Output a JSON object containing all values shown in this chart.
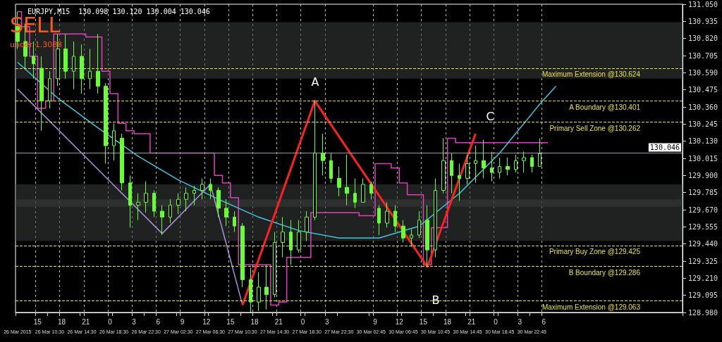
{
  "chart_data": {
    "type": "candlestick",
    "title": "EURJPY,M15  130.098 130.120 130.004 130.046",
    "categories": [
      "26 Mar 2015",
      null,
      null,
      null,
      null,
      "15",
      null,
      null,
      "26 Mar 10:30",
      null,
      null,
      "18",
      null,
      null,
      null,
      null,
      "26 Mar 14:30",
      "21",
      null,
      null,
      null,
      null,
      null,
      "0",
      "26 Mar 18:30",
      null,
      null,
      null,
      null,
      "3",
      null,
      null,
      "26 Mar 22:30",
      null,
      null,
      "6",
      null,
      null,
      null,
      null,
      "27 Mar 02:30",
      "9",
      null,
      null,
      null,
      null,
      null,
      "12",
      "27 Mar 06:30",
      null,
      null,
      null,
      null,
      "15",
      null,
      null,
      "27 Mar 10:30",
      null,
      null,
      "18",
      null,
      null,
      null,
      null,
      "27 Mar 14:30",
      "21",
      null,
      null,
      null,
      null,
      null,
      "0",
      "27 Mar 18:30",
      null,
      null,
      null,
      null,
      "3",
      null,
      null,
      "27 Mar 22:30",
      null,
      null,
      null,
      null,
      null,
      null,
      null,
      "30 Mar 02:45",
      "9",
      null,
      null,
      null,
      null,
      null,
      "12",
      "30 Mar 06:45",
      null,
      null,
      null,
      null,
      "15",
      null,
      null,
      "30 Mar 10:45",
      null,
      null,
      "18",
      null,
      null,
      null,
      null,
      "30 Mar 14:45",
      "21",
      null,
      null,
      null,
      null,
      null,
      "0",
      "30 Mar 18:45",
      null,
      null,
      null,
      null,
      "3",
      null,
      null,
      "30 Mar 22:45",
      null,
      null,
      "6",
      null,
      null,
      null,
      null,
      null,
      null,
      null,
      null,
      null,
      null,
      null,
      null,
      null,
      null,
      null,
      null,
      null,
      null,
      null,
      null,
      null,
      null,
      null,
      null,
      null,
      null,
      null,
      null,
      null,
      null,
      null,
      null,
      null,
      null
    ],
    "ylim": [
      128.98,
      131.05
    ],
    "yticks": [
      {
        "value": 128.98,
        "label": "128.980"
      },
      {
        "value": 129.095,
        "label": "129.095"
      },
      {
        "value": 129.21,
        "label": "129.210"
      },
      {
        "value": 129.325,
        "label": "129.325"
      },
      {
        "value": 129.44,
        "label": "129.440"
      },
      {
        "value": 129.555,
        "label": "129.555"
      },
      {
        "value": 129.67,
        "label": "129.670"
      },
      {
        "value": 129.785,
        "label": "129.785"
      },
      {
        "value": 129.9,
        "label": "129.900"
      },
      {
        "value": 130.015,
        "label": "130.015"
      },
      {
        "value": 130.13,
        "label": "130.130"
      },
      {
        "value": 130.245,
        "label": "130.245"
      },
      {
        "value": 130.36,
        "label": "130.360"
      },
      {
        "value": 130.475,
        "label": "130.475"
      },
      {
        "value": 130.59,
        "label": "130.590"
      },
      {
        "value": 130.705,
        "label": "130.705"
      },
      {
        "value": 130.82,
        "label": "130.820"
      },
      {
        "value": 130.935,
        "label": "130.935"
      },
      {
        "value": 131.05,
        "label": "131.050"
      }
    ],
    "grid": "x",
    "series": [
      {
        "color": "#66ff33",
        "ohlc": [
          [
            130.9,
            131.0,
            130.75,
            130.8
          ],
          null,
          [
            130.8,
            130.92,
            130.62,
            130.7
          ],
          null,
          [
            130.7,
            130.8,
            130.55,
            130.65
          ],
          null,
          [
            130.62,
            130.7,
            130.2,
            130.4
          ],
          null,
          [
            130.4,
            130.6,
            130.35,
            130.55
          ],
          null,
          [
            130.55,
            130.85,
            130.5,
            130.75
          ],
          null,
          [
            130.75,
            130.85,
            130.55,
            130.6
          ],
          null,
          [
            130.6,
            130.8,
            130.48,
            130.7
          ],
          null,
          [
            130.7,
            130.78,
            130.45,
            130.55
          ],
          null,
          [
            130.55,
            130.75,
            130.48,
            130.6
          ],
          null,
          [
            130.6,
            130.85,
            130.45,
            130.5
          ],
          null,
          [
            130.5,
            130.52,
            129.98,
            130.1
          ],
          null,
          [
            130.1,
            130.25,
            130.0,
            130.2
          ],
          null,
          [
            130.15,
            130.18,
            129.8,
            129.85
          ],
          null,
          [
            129.85,
            129.9,
            129.55,
            129.7
          ],
          null,
          [
            129.7,
            129.78,
            129.6,
            129.72
          ],
          null,
          [
            129.72,
            129.86,
            129.65,
            129.78
          ],
          null,
          [
            129.78,
            129.8,
            129.62,
            129.66
          ],
          null,
          [
            129.66,
            129.7,
            129.5,
            129.62
          ],
          null,
          [
            129.62,
            129.74,
            129.58,
            129.7
          ],
          null,
          [
            129.7,
            129.78,
            129.64,
            129.74
          ],
          null,
          [
            129.74,
            129.82,
            129.66,
            129.78
          ],
          null,
          [
            129.78,
            129.83,
            129.7,
            129.8
          ],
          null,
          [
            129.8,
            129.88,
            129.74,
            129.84
          ],
          null,
          [
            129.84,
            129.88,
            129.74,
            129.8
          ],
          null,
          [
            129.8,
            129.82,
            129.62,
            129.68
          ],
          null,
          [
            129.68,
            129.74,
            129.56,
            129.62
          ],
          null,
          [
            129.62,
            129.66,
            129.52,
            129.56
          ],
          null,
          [
            129.56,
            129.58,
            129.15,
            129.2
          ],
          null,
          [
            129.2,
            129.28,
            128.98,
            129.05
          ],
          null,
          [
            129.05,
            129.25,
            128.99,
            129.15
          ],
          null,
          [
            129.15,
            129.3,
            129.0,
            129.1
          ],
          null,
          [
            129.1,
            129.52,
            129.08,
            129.45
          ],
          null,
          [
            129.45,
            129.62,
            129.35,
            129.52
          ],
          null,
          [
            129.52,
            129.6,
            129.3,
            129.4
          ],
          null,
          [
            129.4,
            129.6,
            129.38,
            129.52
          ],
          null,
          [
            129.52,
            129.66,
            129.46,
            129.62
          ],
          null,
          [
            129.62,
            130.4,
            129.6,
            130.05
          ],
          null,
          [
            130.05,
            130.18,
            129.9,
            130.0
          ],
          null,
          [
            130.0,
            130.05,
            129.85,
            129.88
          ],
          null,
          [
            129.88,
            129.96,
            129.76,
            129.82
          ],
          null,
          [
            129.82,
            130.04,
            129.7,
            129.78
          ],
          null,
          [
            129.78,
            129.88,
            129.68,
            129.72
          ],
          null,
          [
            129.72,
            129.88,
            129.72,
            129.84
          ],
          null,
          [
            129.84,
            129.86,
            129.74,
            129.78
          ],
          null,
          [
            129.68,
            129.7,
            129.5,
            129.58
          ],
          null,
          [
            129.58,
            129.72,
            129.55,
            129.66
          ],
          null,
          [
            129.66,
            129.7,
            129.52,
            129.56
          ],
          null,
          [
            129.56,
            129.6,
            129.45,
            129.48
          ],
          null,
          [
            129.48,
            129.54,
            129.42,
            129.5
          ],
          null,
          [
            129.5,
            129.66,
            129.48,
            129.6
          ],
          null,
          [
            129.6,
            129.7,
            129.29,
            129.4
          ],
          null,
          [
            129.4,
            129.88,
            129.35,
            129.8
          ],
          null,
          [
            129.8,
            130.15,
            129.78,
            130.0
          ],
          null,
          [
            130.0,
            130.05,
            129.78,
            129.9
          ],
          null,
          [
            129.9,
            129.98,
            129.73,
            129.88
          ],
          null,
          [
            129.88,
            130.04,
            129.84,
            129.98
          ],
          null,
          [
            129.98,
            130.1,
            129.85,
            130.0
          ],
          null,
          [
            130.0,
            130.14,
            129.88,
            129.95
          ],
          null,
          [
            129.95,
            130.06,
            129.86,
            129.92
          ],
          null,
          [
            129.92,
            130.02,
            129.88,
            129.96
          ],
          null,
          [
            129.96,
            130.02,
            129.9,
            129.94
          ],
          null,
          [
            129.94,
            130.04,
            129.92,
            130.0
          ],
          null,
          [
            130.0,
            130.06,
            129.92,
            130.02
          ],
          null,
          [
            130.02,
            130.04,
            129.92,
            129.96
          ],
          null,
          [
            129.96,
            130.15,
            129.96,
            130.046
          ],
          null,
          null,
          null,
          null,
          null,
          null,
          null,
          null,
          null,
          null,
          null,
          null,
          null,
          null,
          null,
          null,
          null,
          null,
          null,
          null,
          null,
          null,
          null,
          null,
          null,
          null,
          null,
          null,
          null,
          null,
          null,
          null,
          null,
          null,
          null
        ]
      },
      {
        "type": "step",
        "color": "#e040c0",
        "values": [
          131.0,
          131.0,
          130.9,
          130.9,
          130.7,
          130.7,
          130.35,
          130.35,
          130.4,
          130.4,
          130.85,
          130.85,
          130.85,
          130.85,
          130.85,
          130.85,
          130.85,
          130.85,
          130.83,
          130.83,
          130.83,
          130.83,
          130.6,
          130.6,
          130.45,
          130.45,
          130.25,
          130.25,
          130.2,
          130.2,
          130.18,
          130.18,
          130.18,
          130.18,
          130.05,
          130.05,
          130.05,
          130.05,
          130.05,
          130.05,
          130.05,
          130.05,
          130.05,
          130.05,
          130.05,
          130.05,
          130.05,
          130.05,
          130.05,
          130.05,
          129.9,
          129.9,
          129.85,
          129.85,
          129.75,
          129.75,
          129.3,
          129.3,
          129.3,
          129.3,
          129.3,
          129.3,
          129.3,
          129.3,
          129.03,
          129.03,
          129.05,
          129.05,
          129.35,
          129.35,
          129.35,
          129.35,
          129.35,
          129.35,
          129.65,
          129.65,
          129.65,
          129.65,
          129.65,
          129.65,
          129.65,
          129.65,
          129.65,
          129.65,
          129.65,
          129.65,
          129.63,
          129.63,
          129.63,
          129.63,
          129.98,
          129.98,
          129.98,
          129.98,
          129.95,
          129.95,
          129.85,
          129.85,
          129.77,
          129.77,
          129.77,
          129.77,
          129.3,
          129.3,
          129.55,
          129.55,
          129.55,
          129.55,
          130.15,
          130.15,
          130.12,
          130.12,
          130.12,
          130.12,
          130.12,
          130.12,
          130.12,
          130.12,
          130.12,
          130.12,
          130.12,
          130.12,
          130.12,
          130.12,
          130.12,
          130.12,
          130.12,
          130.12,
          130.12,
          130.12,
          130.12,
          130.12,
          130.12,
          null,
          null,
          null,
          null,
          null,
          null,
          null,
          null,
          null,
          null,
          null,
          null,
          null,
          null,
          null,
          null,
          null,
          null,
          null,
          null,
          null,
          null,
          null,
          null,
          null,
          null,
          null,
          null,
          null,
          null,
          null,
          null,
          null
        ]
      },
      {
        "type": "line",
        "color": "#40c8e0",
        "values": [
          130.66,
          null,
          null,
          null,
          null,
          null,
          null,
          null,
          null,
          null,
          130.42,
          null,
          null,
          null,
          null,
          null,
          null,
          null,
          null,
          null,
          130.22,
          null,
          null,
          null,
          null,
          null,
          null,
          null,
          null,
          null,
          130.03,
          null,
          null,
          null,
          null,
          null,
          null,
          null,
          null,
          null,
          129.87,
          null,
          null,
          null,
          null,
          null,
          null,
          null,
          null,
          null,
          129.74,
          null,
          null,
          null,
          null,
          null,
          null,
          null,
          null,
          null,
          129.62,
          null,
          null,
          null,
          null,
          null,
          null,
          null,
          null,
          null,
          129.53,
          null,
          null,
          null,
          null,
          null,
          null,
          null,
          null,
          null,
          129.48,
          null,
          null,
          null,
          null,
          null,
          null,
          null,
          null,
          null,
          129.48,
          null,
          null,
          null,
          null,
          null,
          null,
          null,
          null,
          null,
          129.56,
          null,
          null,
          null,
          null,
          null,
          null,
          null,
          null,
          null,
          129.78,
          null,
          null,
          null,
          null,
          null,
          null,
          null,
          null,
          null,
          130.05,
          null,
          null,
          null,
          null,
          null,
          null,
          null,
          null,
          null,
          130.38,
          null,
          null,
          null,
          130.5,
          null,
          null,
          null,
          null,
          null,
          null,
          null,
          null,
          null,
          null,
          null,
          null,
          null,
          null,
          null,
          null,
          null,
          null,
          null,
          null,
          null,
          null,
          null,
          null,
          null,
          null,
          null,
          null,
          null,
          null,
          null
        ]
      },
      {
        "type": "line",
        "color": "#b090e0",
        "values": [
          130.48,
          null,
          null,
          null,
          null,
          null,
          null,
          null,
          null,
          null,
          null,
          null,
          null,
          null,
          null,
          null,
          null,
          null,
          null,
          null,
          null,
          null,
          null,
          null,
          null,
          null,
          null,
          null,
          null,
          null,
          null,
          null,
          null,
          null,
          null,
          null,
          129.51,
          null,
          null,
          null,
          null,
          null,
          null,
          null,
          null,
          null,
          null,
          null,
          129.84,
          null,
          null,
          null,
          null,
          null,
          null,
          null,
          129.03,
          null,
          null,
          null,
          null,
          null,
          null,
          null,
          null,
          null,
          null,
          null,
          null,
          null,
          null,
          null,
          null,
          null,
          null,
          null,
          null,
          null,
          null,
          null,
          null,
          null,
          null,
          null,
          null,
          null,
          null,
          null,
          null,
          null,
          null,
          null,
          null,
          null,
          null,
          null,
          null,
          null,
          null,
          null,
          null,
          null,
          null,
          null,
          null,
          null,
          null,
          null,
          null,
          null,
          null,
          null,
          null,
          null,
          null,
          null,
          null,
          null,
          null,
          null,
          null,
          null,
          null,
          null,
          null,
          null,
          null,
          null,
          null,
          null,
          null,
          null,
          null,
          null,
          null,
          null,
          null,
          null,
          null,
          null,
          null,
          null,
          null,
          null,
          null,
          null,
          null,
          null,
          null,
          null,
          null,
          null,
          null,
          null,
          null,
          null,
          null,
          null,
          null,
          null,
          null,
          null,
          null,
          null,
          null,
          null
        ]
      },
      {
        "type": "line",
        "color": "#ff2020",
        "values": [
          null,
          null,
          null,
          null,
          null,
          null,
          null,
          null,
          null,
          null,
          null,
          null,
          null,
          null,
          null,
          null,
          null,
          null,
          null,
          null,
          null,
          null,
          null,
          null,
          null,
          null,
          null,
          null,
          null,
          null,
          null,
          null,
          null,
          null,
          null,
          null,
          null,
          null,
          null,
          null,
          null,
          null,
          null,
          null,
          null,
          null,
          null,
          null,
          null,
          null,
          null,
          null,
          null,
          null,
          null,
          null,
          129.03,
          null,
          null,
          null,
          null,
          null,
          null,
          null,
          null,
          null,
          null,
          null,
          null,
          null,
          null,
          null,
          null,
          null,
          130.401,
          null,
          null,
          null,
          null,
          null,
          null,
          null,
          null,
          null,
          null,
          null,
          null,
          null,
          null,
          null,
          null,
          null,
          null,
          null,
          null,
          null,
          null,
          null,
          null,
          null,
          null,
          null,
          129.286,
          null,
          null,
          null,
          null,
          null,
          null,
          null,
          null,
          null,
          null,
          null,
          130.18,
          null,
          null,
          null,
          null,
          null,
          null,
          null,
          null,
          null,
          null,
          null,
          null,
          null,
          null,
          null,
          null,
          null,
          null,
          null,
          null,
          null,
          null,
          null,
          null,
          null,
          null,
          null,
          null,
          null,
          null,
          null,
          null,
          null,
          null,
          null,
          null,
          null,
          null,
          null,
          null,
          null,
          null,
          null,
          null,
          null,
          null,
          null,
          null,
          null,
          null,
          null
        ]
      }
    ],
    "ref_lines": [
      {
        "axis": "y",
        "value": 130.624,
        "label": "Maximum Extension @130.624",
        "color": "#e8e050",
        "line_style": "dashed"
      },
      {
        "axis": "y",
        "value": 130.401,
        "label": "A Boundary @130.401",
        "color": "#e8e050",
        "line_style": "dashed"
      },
      {
        "axis": "y",
        "value": 130.262,
        "label": "Primary Sell Zone @130.262",
        "color": "#e8e050",
        "line_style": "dashed"
      },
      {
        "axis": "y",
        "value": 129.425,
        "label": "Primary Buy Zone @129.425",
        "color": "#e8e050",
        "line_style": "dashed"
      },
      {
        "axis": "y",
        "value": 129.286,
        "label": "B Boundary @129.286",
        "color": "#e8e050",
        "line_style": "dashed"
      },
      {
        "axis": "y",
        "value": 129.063,
        "label": "Maximum Extension @129.063",
        "color": "#e8e050",
        "line_style": "dashed"
      },
      {
        "axis": "y",
        "value": 130.046,
        "label": "130.046",
        "color": "#9a9aa8",
        "line_style": "solid"
      }
    ],
    "bands": [
      {
        "axis": "y",
        "from": 130.55,
        "to": 130.93,
        "color": "#3a3d3c"
      },
      {
        "axis": "y",
        "from": 129.69,
        "to": 129.84,
        "color": "#3a3d3c"
      },
      {
        "axis": "y",
        "from": 129.46,
        "to": 129.74,
        "color": "#3a3d3c"
      }
    ],
    "annotations": [
      "SELL",
      "under 1.3088",
      "A",
      "B",
      "C"
    ]
  }
}
